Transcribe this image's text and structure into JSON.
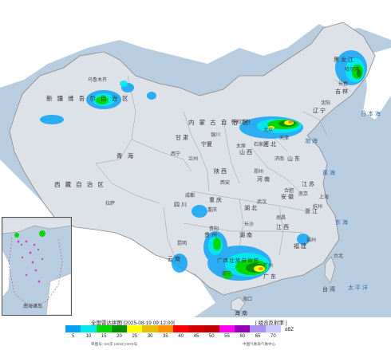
{
  "map": {
    "regions": [
      {
        "id": "xinjiang",
        "text": "新 疆 维 吾 尔 自 治 区",
        "cls": "major"
      },
      {
        "id": "xizang",
        "text": "西 藏 自 治 区",
        "cls": "major"
      },
      {
        "id": "qinghai",
        "text": "青 海",
        "cls": "major"
      },
      {
        "id": "gansu",
        "text": "甘 肃",
        "cls": ""
      },
      {
        "id": "neimenggu",
        "text": "内 蒙 古 自 治 区",
        "cls": "major"
      },
      {
        "id": "heilongjiang",
        "text": "黑 龙 江",
        "cls": ""
      },
      {
        "id": "jilin",
        "text": "吉 林",
        "cls": ""
      },
      {
        "id": "liaoning",
        "text": "辽 宁",
        "cls": ""
      },
      {
        "id": "hebei",
        "text": "河 北",
        "cls": ""
      },
      {
        "id": "shanxi",
        "text": "山 西",
        "cls": ""
      },
      {
        "id": "shaanxi",
        "text": "陕 西",
        "cls": ""
      },
      {
        "id": "ningxia",
        "text": "宁夏",
        "cls": ""
      },
      {
        "id": "shandong",
        "text": "山 东",
        "cls": ""
      },
      {
        "id": "henan",
        "text": "河 南",
        "cls": ""
      },
      {
        "id": "jiangsu",
        "text": "江 苏",
        "cls": ""
      },
      {
        "id": "anhui",
        "text": "安 徽",
        "cls": ""
      },
      {
        "id": "hubei",
        "text": "湖 北",
        "cls": ""
      },
      {
        "id": "sichuan",
        "text": "四 川",
        "cls": ""
      },
      {
        "id": "chongqing",
        "text": "重 庆",
        "cls": ""
      },
      {
        "id": "hunan",
        "text": "湖 南",
        "cls": ""
      },
      {
        "id": "jiangxi",
        "text": "江 西",
        "cls": ""
      },
      {
        "id": "zhejiang",
        "text": "浙 江",
        "cls": ""
      },
      {
        "id": "fujian",
        "text": "福 建",
        "cls": ""
      },
      {
        "id": "guizhou",
        "text": "贵 州",
        "cls": ""
      },
      {
        "id": "yunnan",
        "text": "云 南",
        "cls": ""
      },
      {
        "id": "guangxi",
        "text": "广 西 壮 族 自 治 区",
        "cls": ""
      },
      {
        "id": "guangdong",
        "text": "广 东",
        "cls": ""
      },
      {
        "id": "taiwan",
        "text": "台 湾",
        "cls": ""
      },
      {
        "id": "hainan",
        "text": "海 南",
        "cls": ""
      }
    ],
    "seas": [
      {
        "id": "bohai",
        "text": "渤 海"
      },
      {
        "id": "huanghai",
        "text": "黄 海"
      },
      {
        "id": "donghai",
        "text": "东 海"
      },
      {
        "id": "pacific",
        "text": "太 平 洋"
      },
      {
        "id": "riben",
        "text": "日 本 海"
      }
    ],
    "cities": [
      {
        "id": "wulumuqi",
        "text": "乌鲁木齐"
      },
      {
        "id": "lasa",
        "text": "拉萨"
      },
      {
        "id": "xining",
        "text": "西宁"
      },
      {
        "id": "lanzhou",
        "text": "兰州"
      },
      {
        "id": "yinchuan",
        "text": "银川"
      },
      {
        "id": "huhehaote",
        "text": "呼和浩特"
      },
      {
        "id": "beijing",
        "text": "北京"
      },
      {
        "id": "tianjin",
        "text": "天津"
      },
      {
        "id": "shijiazhuang",
        "text": "石家庄"
      },
      {
        "id": "taiyuan",
        "text": "太原"
      },
      {
        "id": "jinan",
        "text": "济南"
      },
      {
        "id": "xian",
        "text": "西安"
      },
      {
        "id": "zhengzhou",
        "text": "郑州"
      },
      {
        "id": "hefei",
        "text": "合肥"
      },
      {
        "id": "nanjing",
        "text": "南京"
      },
      {
        "id": "shanghai",
        "text": "上海"
      },
      {
        "id": "hangzhou",
        "text": "杭州"
      },
      {
        "id": "wuhan",
        "text": "武汉"
      },
      {
        "id": "chengdu",
        "text": "成都"
      },
      {
        "id": "chongqingc",
        "text": "重庆"
      },
      {
        "id": "changsha",
        "text": "长沙"
      },
      {
        "id": "nanchang",
        "text": "南昌"
      },
      {
        "id": "fuzhou",
        "text": "福州"
      },
      {
        "id": "guiyang",
        "text": "贵阳"
      },
      {
        "id": "kunming",
        "text": "昆明"
      },
      {
        "id": "nanning",
        "text": "南宁"
      },
      {
        "id": "guangzhou",
        "text": "广州"
      },
      {
        "id": "haikou",
        "text": "海口"
      },
      {
        "id": "taibei",
        "text": "台北"
      },
      {
        "id": "shenyang",
        "text": "沈阳"
      },
      {
        "id": "changchun",
        "text": "长春"
      },
      {
        "id": "haerbin",
        "text": "哈尔滨"
      }
    ]
  },
  "inset": {
    "label": "南海诸岛"
  },
  "footer": {
    "title": "全国雷达拼图 [2025-08-19 09:12:00]",
    "product": "[ 组合反射率 ]",
    "unit": "dBZ",
    "approval": "审图号: GS京 (2022) 0372号",
    "source": "中国气象局气象中心"
  },
  "legend": {
    "ticks": [
      "5",
      "10",
      "15",
      "20",
      "25",
      "30",
      "35",
      "40",
      "45",
      "50",
      "55",
      "60",
      "65",
      "70"
    ],
    "colors": [
      "#01a0f6",
      "#00ecec",
      "#00d800",
      "#019000",
      "#ffff00",
      "#e7c000",
      "#ff9000",
      "#ff0000",
      "#d60000",
      "#c00000",
      "#ff00f0",
      "#9600b4",
      "#ad90f0",
      "#c8c8ff"
    ]
  }
}
